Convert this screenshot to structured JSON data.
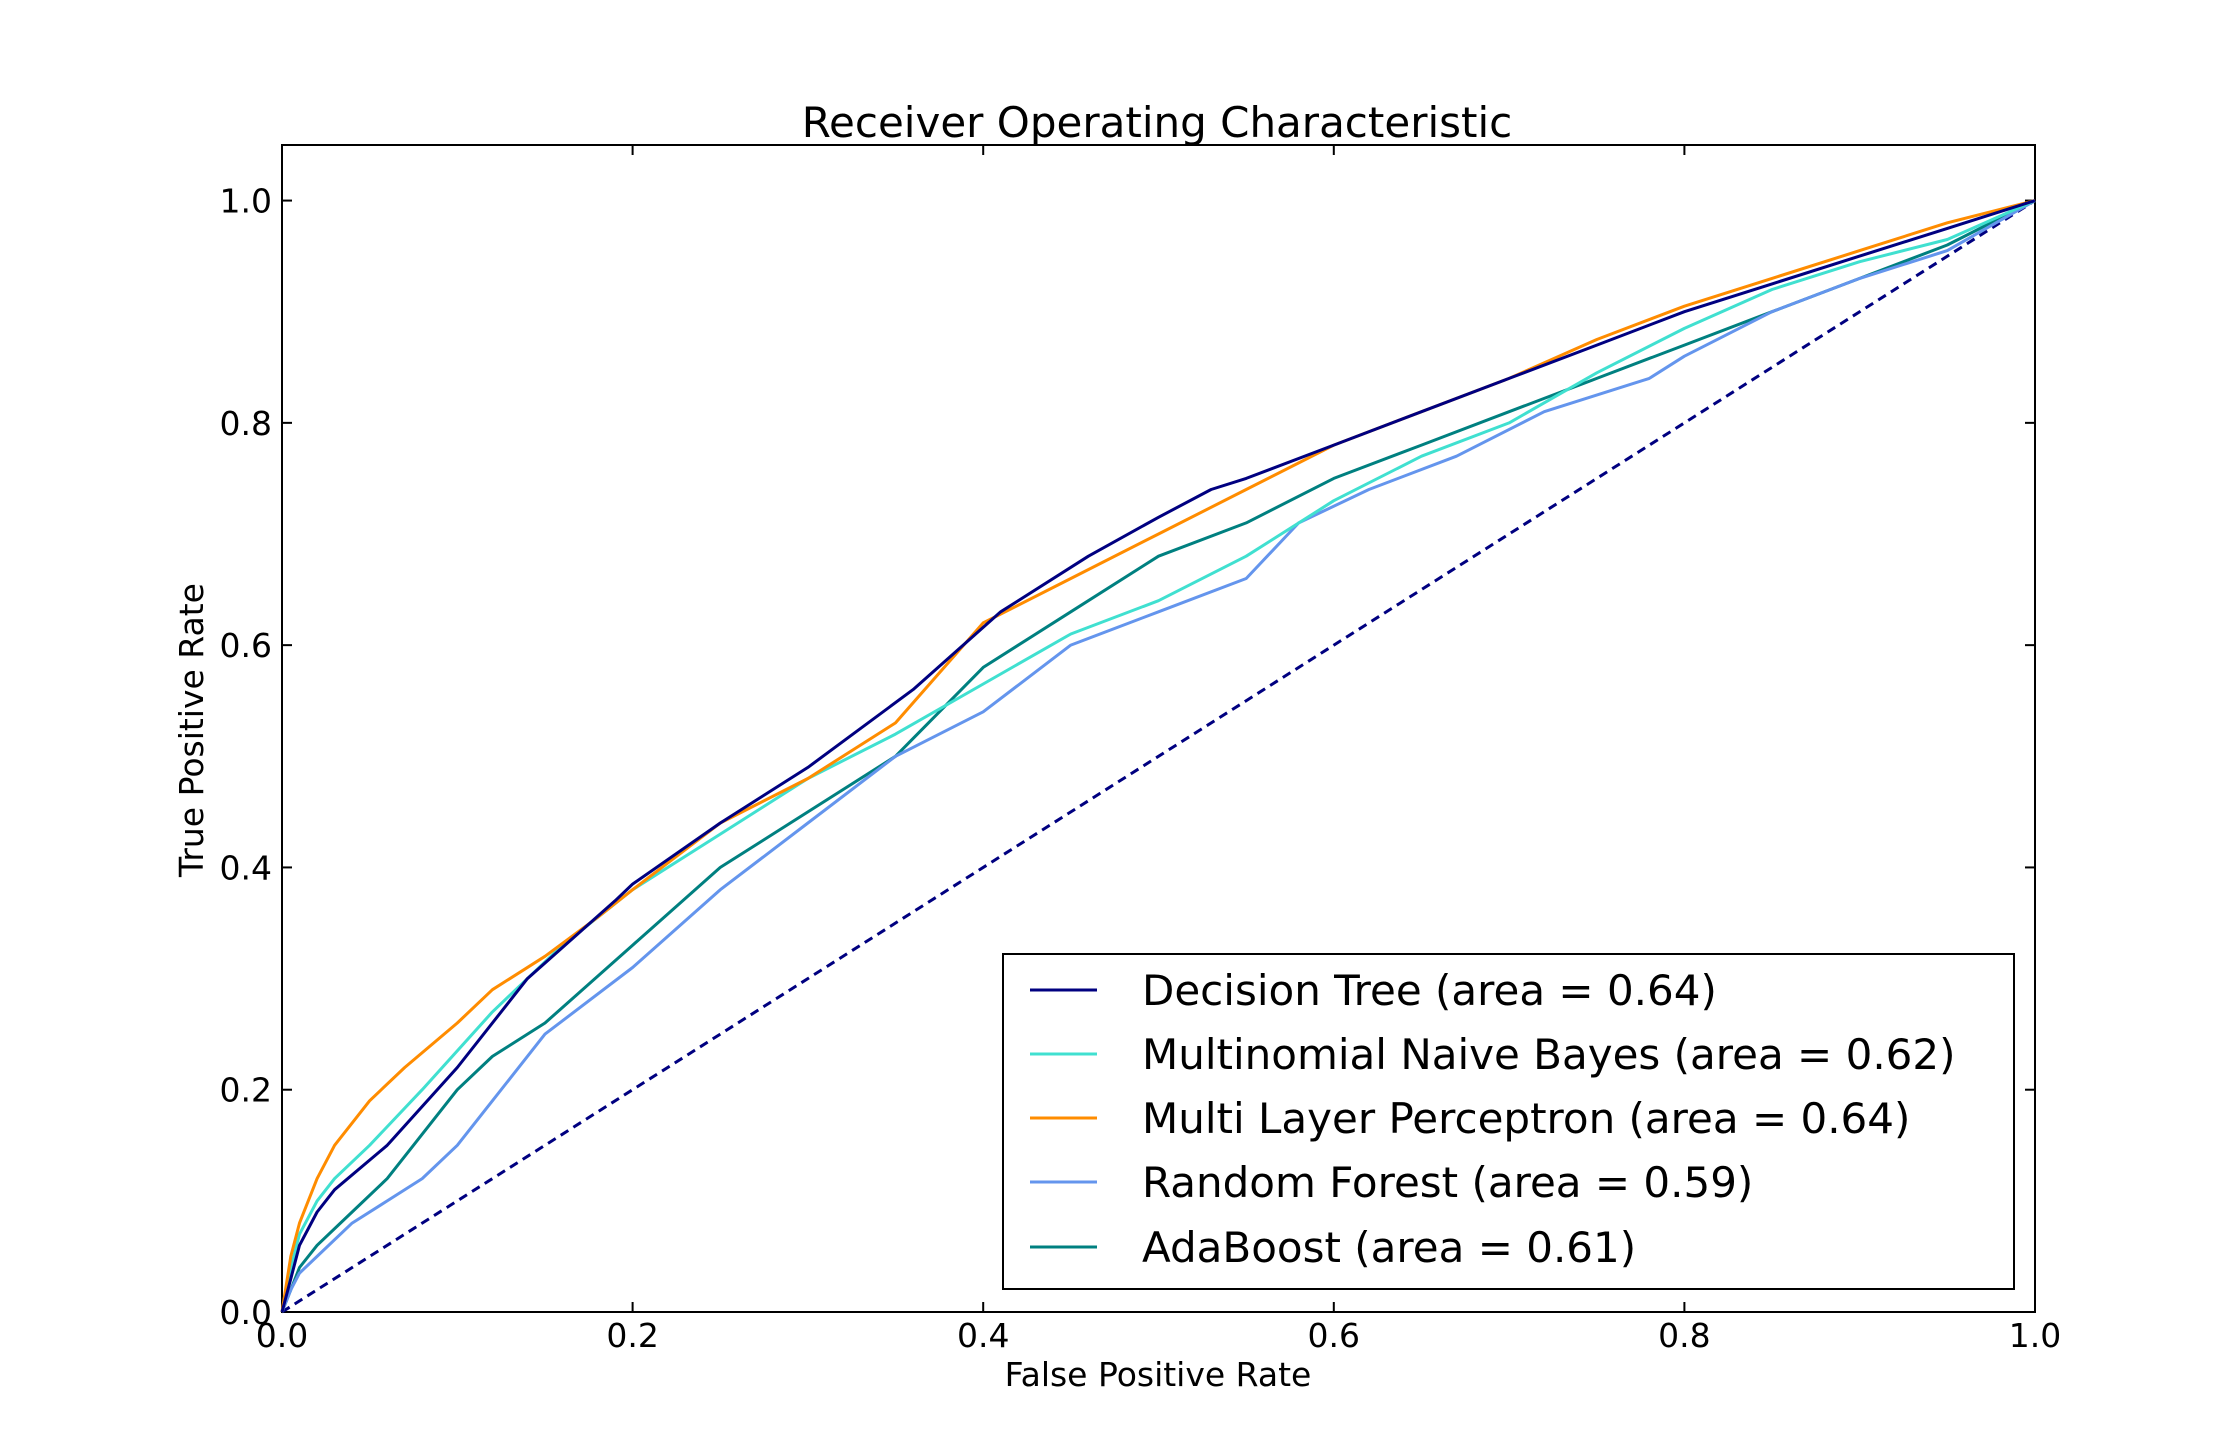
{
  "chart_data": {
    "type": "line",
    "title": "Receiver Operating Characteristic",
    "xlabel": "False Positive Rate",
    "ylabel": "True Positive Rate",
    "xlim": [
      0.0,
      1.0
    ],
    "ylim": [
      0.0,
      1.05
    ],
    "xticks": [
      0.0,
      0.2,
      0.4,
      0.6,
      0.8,
      1.0
    ],
    "yticks": [
      0.0,
      0.2,
      0.4,
      0.6,
      0.8,
      1.0
    ],
    "xtick_labels": [
      "0.0",
      "0.2",
      "0.4",
      "0.6",
      "0.8",
      "1.0"
    ],
    "ytick_labels": [
      "0.0",
      "0.2",
      "0.4",
      "0.6",
      "0.8",
      "1.0"
    ],
    "grid": false,
    "legend_position": "lower-right",
    "series": [
      {
        "name": "Decision Tree (area = 0.64)",
        "color": "#000080",
        "style": "solid",
        "x": [
          0.0,
          0.005,
          0.01,
          0.02,
          0.03,
          0.06,
          0.1,
          0.14,
          0.19,
          0.2,
          0.25,
          0.3,
          0.36,
          0.41,
          0.46,
          0.5,
          0.53,
          0.55,
          0.6,
          0.65,
          0.7,
          0.75,
          0.8,
          0.85,
          0.9,
          0.95,
          1.0
        ],
        "y": [
          0.0,
          0.03,
          0.06,
          0.09,
          0.11,
          0.15,
          0.22,
          0.3,
          0.37,
          0.385,
          0.44,
          0.49,
          0.56,
          0.63,
          0.68,
          0.715,
          0.74,
          0.75,
          0.78,
          0.81,
          0.84,
          0.87,
          0.9,
          0.925,
          0.95,
          0.975,
          1.0
        ]
      },
      {
        "name": "Multinomial Naive Bayes (area = 0.62)",
        "color": "#40e0d0",
        "style": "solid",
        "x": [
          0.0,
          0.005,
          0.01,
          0.02,
          0.03,
          0.05,
          0.08,
          0.12,
          0.16,
          0.2,
          0.25,
          0.3,
          0.35,
          0.4,
          0.45,
          0.5,
          0.55,
          0.6,
          0.65,
          0.7,
          0.75,
          0.8,
          0.85,
          0.9,
          0.95,
          1.0
        ],
        "y": [
          0.0,
          0.04,
          0.07,
          0.1,
          0.12,
          0.15,
          0.2,
          0.27,
          0.33,
          0.38,
          0.43,
          0.48,
          0.52,
          0.565,
          0.61,
          0.64,
          0.68,
          0.73,
          0.77,
          0.8,
          0.845,
          0.885,
          0.92,
          0.945,
          0.965,
          1.0
        ]
      },
      {
        "name": "Multi Layer Perceptron (area = 0.64)",
        "color": "#ff8c00",
        "style": "solid",
        "x": [
          0.0,
          0.005,
          0.01,
          0.02,
          0.03,
          0.05,
          0.07,
          0.1,
          0.12,
          0.15,
          0.18,
          0.2,
          0.25,
          0.3,
          0.35,
          0.4,
          0.45,
          0.5,
          0.55,
          0.6,
          0.65,
          0.7,
          0.75,
          0.8,
          0.85,
          0.9,
          0.95,
          1.0
        ],
        "y": [
          0.0,
          0.05,
          0.08,
          0.12,
          0.15,
          0.19,
          0.22,
          0.26,
          0.29,
          0.32,
          0.355,
          0.38,
          0.44,
          0.48,
          0.53,
          0.62,
          0.66,
          0.7,
          0.74,
          0.78,
          0.81,
          0.84,
          0.875,
          0.905,
          0.93,
          0.955,
          0.98,
          1.0
        ]
      },
      {
        "name": "Random Forest (area = 0.59)",
        "color": "#6495ed",
        "style": "solid",
        "x": [
          0.0,
          0.005,
          0.01,
          0.02,
          0.04,
          0.06,
          0.08,
          0.1,
          0.12,
          0.15,
          0.2,
          0.25,
          0.3,
          0.35,
          0.4,
          0.45,
          0.5,
          0.55,
          0.58,
          0.62,
          0.67,
          0.72,
          0.78,
          0.8,
          0.85,
          0.9,
          0.95,
          1.0
        ],
        "y": [
          0.0,
          0.02,
          0.035,
          0.05,
          0.08,
          0.1,
          0.12,
          0.15,
          0.19,
          0.25,
          0.31,
          0.38,
          0.44,
          0.5,
          0.54,
          0.6,
          0.63,
          0.66,
          0.71,
          0.74,
          0.77,
          0.81,
          0.84,
          0.86,
          0.9,
          0.93,
          0.955,
          1.0
        ]
      },
      {
        "name": "AdaBoost (area = 0.61)",
        "color": "#008080",
        "style": "solid",
        "x": [
          0.0,
          0.005,
          0.01,
          0.02,
          0.04,
          0.06,
          0.08,
          0.1,
          0.12,
          0.15,
          0.2,
          0.25,
          0.3,
          0.35,
          0.4,
          0.45,
          0.5,
          0.55,
          0.6,
          0.65,
          0.7,
          0.75,
          0.8,
          0.85,
          0.9,
          0.95,
          1.0
        ],
        "y": [
          0.0,
          0.02,
          0.04,
          0.06,
          0.09,
          0.12,
          0.16,
          0.2,
          0.23,
          0.26,
          0.33,
          0.4,
          0.45,
          0.5,
          0.58,
          0.63,
          0.68,
          0.71,
          0.75,
          0.78,
          0.81,
          0.84,
          0.87,
          0.9,
          0.93,
          0.96,
          1.0
        ]
      },
      {
        "color": "#000080",
        "style": "dashed",
        "x": [
          0.0,
          1.0
        ],
        "y": [
          0.0,
          1.0
        ]
      }
    ]
  }
}
